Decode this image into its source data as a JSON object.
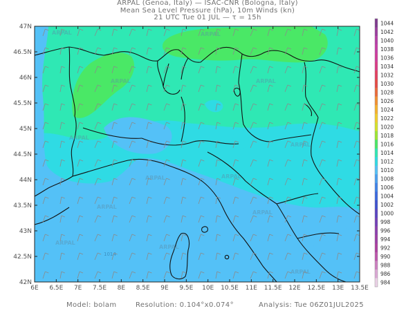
{
  "header": {
    "line1": "ARPAL (Genoa, Italy)  —  ISAC-CNR (Bologna, Italy)",
    "line2": "Mean Sea Level Pressure (hPa), 10m Winds (kn)",
    "line3": "21 UTC Tue 01 JUL  —  τ = 15h"
  },
  "map": {
    "lat_labels": [
      "47N",
      "46.5N",
      "46N",
      "45.5N",
      "45N",
      "44.5N",
      "44N",
      "43.5N",
      "43N",
      "42.5N",
      "42N"
    ],
    "lon_labels": [
      "6E",
      "6.5E",
      "7E",
      "7.5E",
      "8E",
      "8.5E",
      "9E",
      "9.5E",
      "10E",
      "10.5E",
      "11E",
      "11.5E",
      "12E",
      "12.5E",
      "13E",
      "13.5E"
    ],
    "watermark": "ARPAL",
    "isobar_label": "1014",
    "colors": {
      "p1010": "#54c1f7",
      "p1012": "#2fdbe4",
      "p1014": "#2fe8b4",
      "p1016": "#4ae866",
      "border": "#111111",
      "wind": "#8a8a8a"
    }
  },
  "colorbar": {
    "levels": [
      "1044",
      "1042",
      "1040",
      "1038",
      "1036",
      "1034",
      "1032",
      "1030",
      "1028",
      "1026",
      "1024",
      "1022",
      "1020",
      "1018",
      "1016",
      "1014",
      "1012",
      "1010",
      "1008",
      "1006",
      "1004",
      "1002",
      "1000",
      "998",
      "996",
      "994",
      "992",
      "990",
      "988",
      "986",
      "984"
    ],
    "colors": [
      "#7e3a8e",
      "#9b3d9e",
      "#b63ea7",
      "#c53da7",
      "#d13b9b",
      "#db3b86",
      "#e44060",
      "#e64a45",
      "#eb6a39",
      "#f2912f",
      "#f6b22c",
      "#f3cd2c",
      "#d6e22a",
      "#9ee731",
      "#4ae866",
      "#2fe8b4",
      "#2fdbe4",
      "#54c1f7",
      "#4aa0f0",
      "#3f83e8",
      "#3a69df",
      "#3e52cf",
      "#5944c2",
      "#7240b8",
      "#8c3fae",
      "#9c3ea6",
      "#ad3f9f",
      "#bd56ac",
      "#cc7fc0",
      "#dba8d4",
      "#ead1e6"
    ]
  },
  "footer": {
    "model": "Model: bolam",
    "resolution": "Resolution: 0.104°x0.074°",
    "analysis": "Analysis: Tue 06Z01JUL2025"
  }
}
